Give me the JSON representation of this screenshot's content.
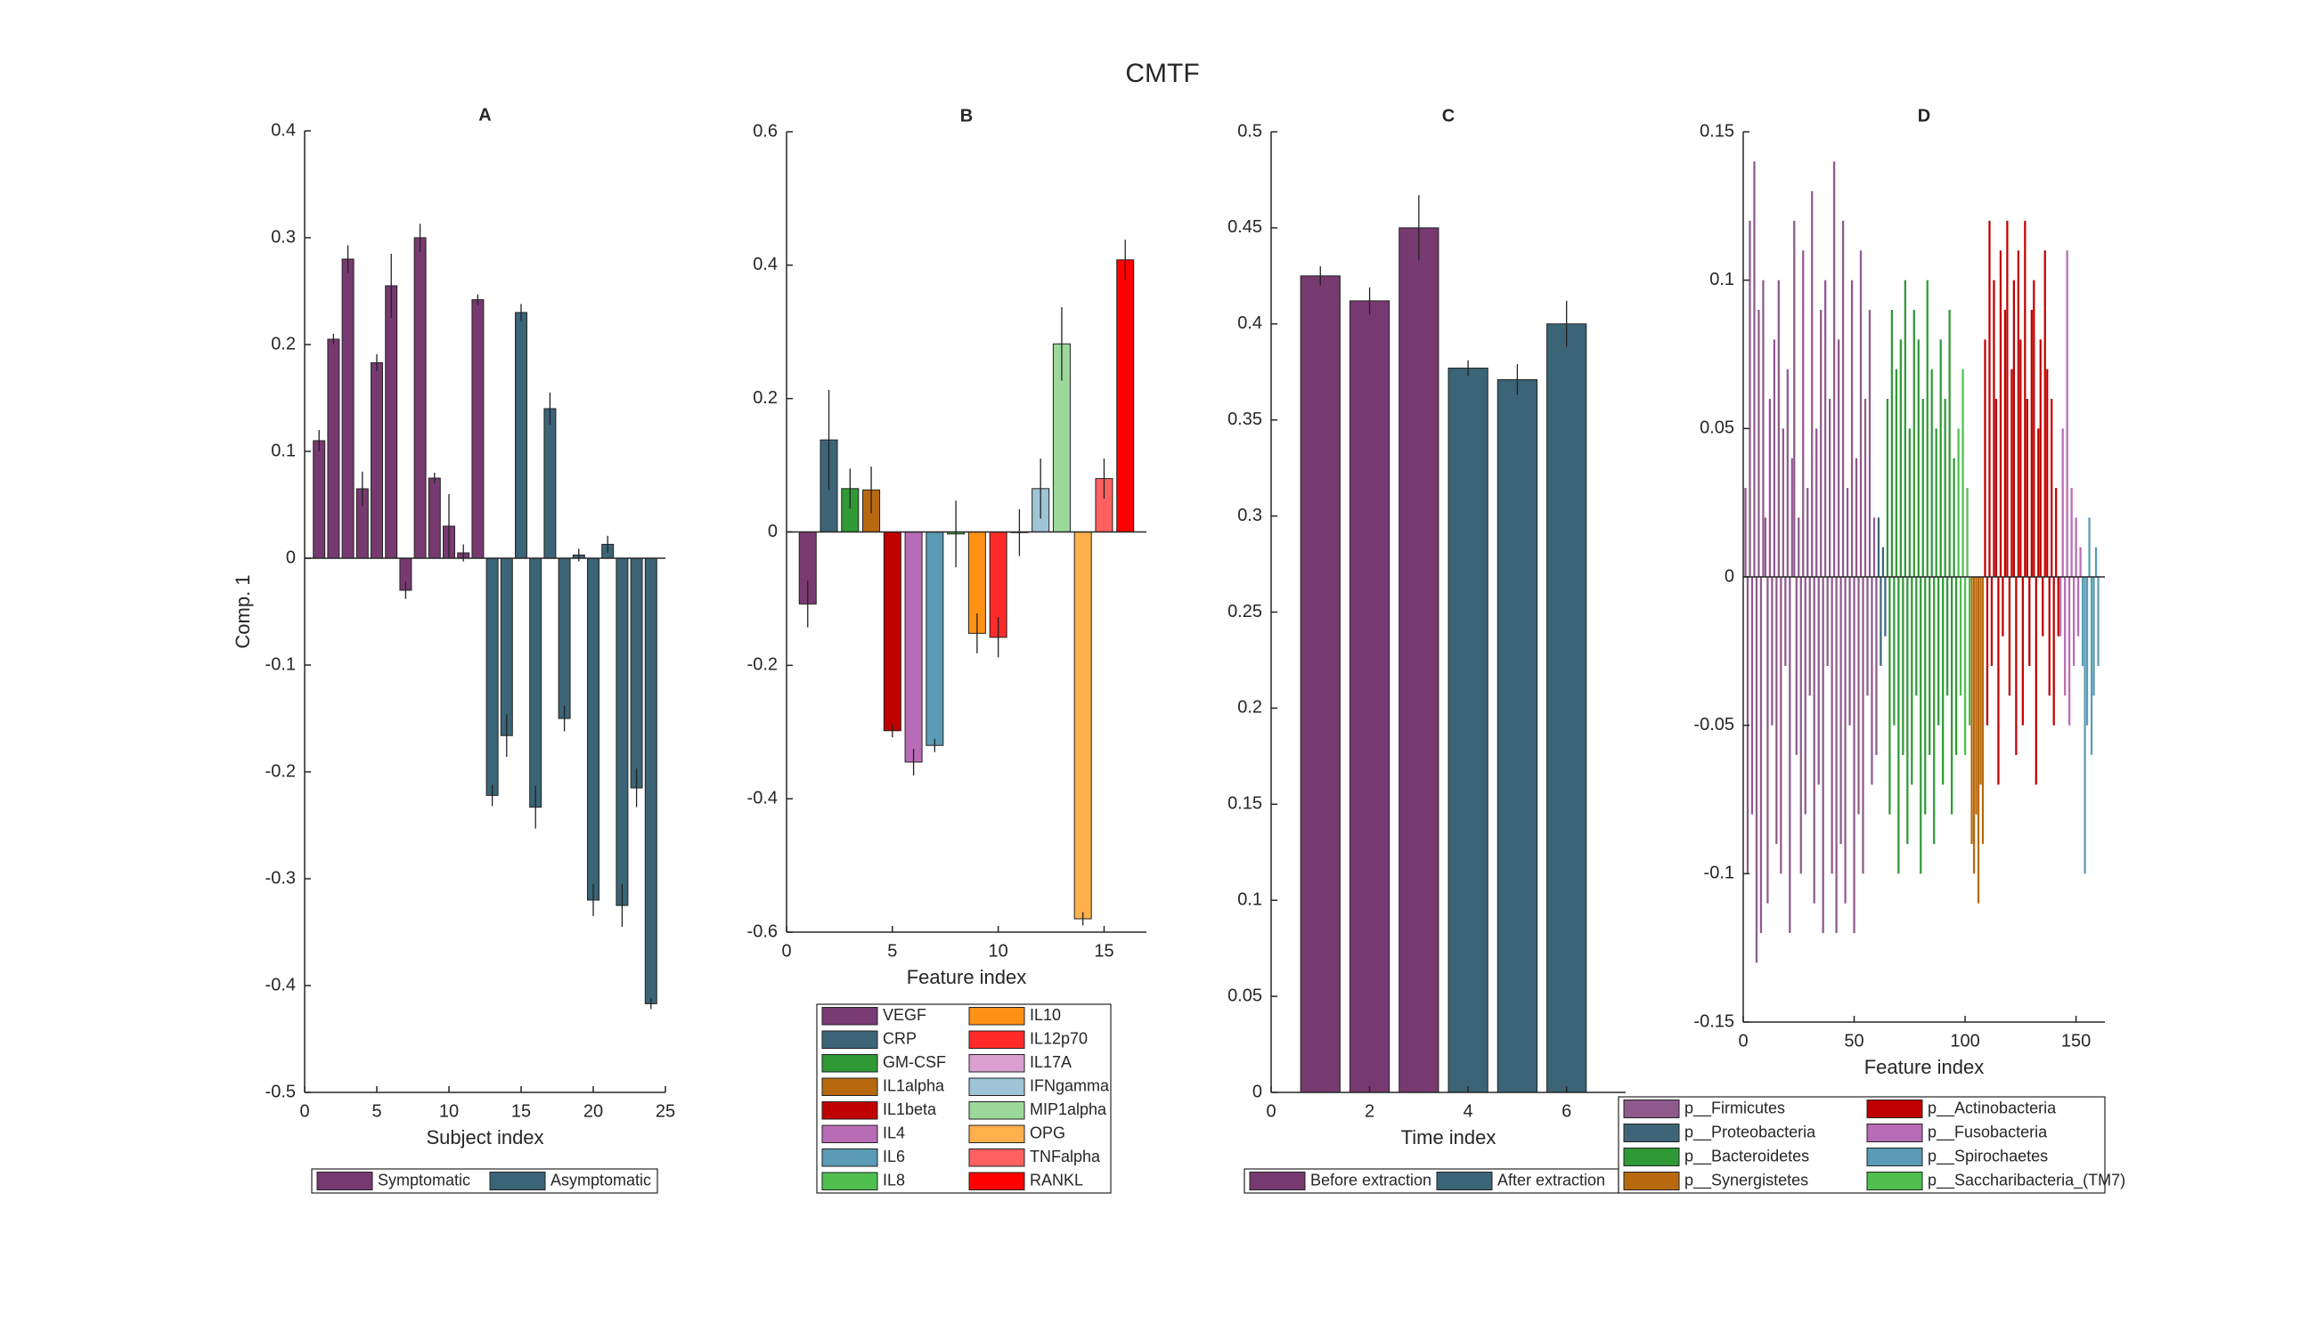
{
  "title": "CMTF",
  "chart_data": [
    {
      "type": "bar",
      "title": "A",
      "xlabel": "Subject index",
      "ylabel": "Comp. 1",
      "xlim": [
        0,
        25
      ],
      "ylim": [
        -0.5,
        0.4
      ],
      "xticks": [
        0,
        5,
        10,
        15,
        20,
        25
      ],
      "yticks": [
        -0.5,
        -0.4,
        -0.3,
        -0.2,
        -0.1,
        0,
        0.1,
        0.2,
        0.3,
        0.4
      ],
      "series": [
        {
          "name": "Symptomatic",
          "color": "#773a70",
          "x": [
            1,
            2,
            3,
            4,
            5,
            6,
            7,
            8,
            9,
            10,
            11,
            12
          ],
          "values": [
            0.11,
            0.205,
            0.28,
            0.065,
            0.183,
            0.255,
            -0.03,
            0.3,
            0.075,
            0.03,
            0.005,
            0.242
          ],
          "errors": [
            0.01,
            0.005,
            0.013,
            0.016,
            0.008,
            0.03,
            0.008,
            0.013,
            0.005,
            0.03,
            0.008,
            0.005
          ]
        },
        {
          "name": "Asymptomatic",
          "color": "#3b6476",
          "x": [
            13,
            14,
            15,
            16,
            17,
            18,
            19,
            20,
            21,
            22,
            23,
            24
          ],
          "values": [
            -0.222,
            -0.166,
            0.23,
            -0.233,
            0.14,
            -0.15,
            0.003,
            -0.32,
            0.013,
            -0.325,
            -0.215,
            -0.417
          ],
          "errors": [
            0.01,
            0.02,
            0.008,
            0.02,
            0.015,
            0.012,
            0.006,
            0.015,
            0.008,
            0.02,
            0.018,
            0.005
          ]
        }
      ]
    },
    {
      "type": "bar",
      "title": "B",
      "xlabel": "Feature index",
      "xlim": [
        0,
        17
      ],
      "ylim": [
        -0.6,
        0.6
      ],
      "xticks": [
        0,
        5,
        10,
        15
      ],
      "yticks": [
        -0.6,
        -0.4,
        -0.2,
        0,
        0.2,
        0.4,
        0.6
      ],
      "series": [
        {
          "name": "VEGF",
          "color": "#7a3b73",
          "x": [
            1
          ],
          "values": [
            -0.108
          ],
          "errors": [
            0.035
          ]
        },
        {
          "name": "CRP",
          "color": "#3e6577",
          "x": [
            2
          ],
          "values": [
            0.138
          ],
          "errors": [
            0.075
          ]
        },
        {
          "name": "GM-CSF",
          "color": "#2f9a35",
          "x": [
            3
          ],
          "values": [
            0.065
          ],
          "errors": [
            0.03
          ]
        },
        {
          "name": "IL1alpha",
          "color": "#b8690e",
          "x": [
            4
          ],
          "values": [
            0.063
          ],
          "errors": [
            0.035
          ]
        },
        {
          "name": "IL1beta",
          "color": "#c00000",
          "x": [
            5
          ],
          "values": [
            -0.298
          ],
          "errors": [
            0.01
          ]
        },
        {
          "name": "IL4",
          "color": "#b86cb6",
          "x": [
            6
          ],
          "values": [
            -0.345
          ],
          "errors": [
            0.02
          ]
        },
        {
          "name": "IL6",
          "color": "#5a9bb5",
          "x": [
            7
          ],
          "values": [
            -0.32
          ],
          "errors": [
            0.01
          ]
        },
        {
          "name": "IL8",
          "color": "#4fc04f",
          "x": [
            8
          ],
          "values": [
            -0.003
          ],
          "errors": [
            0.05
          ]
        },
        {
          "name": "IL10",
          "color": "#ff9214",
          "x": [
            9
          ],
          "values": [
            -0.152
          ],
          "errors": [
            0.03
          ]
        },
        {
          "name": "IL12p70",
          "color": "#ff2a2a",
          "x": [
            10
          ],
          "values": [
            -0.158
          ],
          "errors": [
            0.03
          ]
        },
        {
          "name": "IL17A",
          "color": "#d9a0d0",
          "x": [
            11
          ],
          "values": [
            -0.001
          ],
          "errors": [
            0.035
          ]
        },
        {
          "name": "IFNgamma",
          "color": "#9ec4d6",
          "x": [
            12
          ],
          "values": [
            0.065
          ],
          "errors": [
            0.045
          ]
        },
        {
          "name": "MIP1alpha",
          "color": "#9bd99b",
          "x": [
            13
          ],
          "values": [
            0.282
          ],
          "errors": [
            0.055
          ]
        },
        {
          "name": "OPG",
          "color": "#ffb04a",
          "x": [
            14
          ],
          "values": [
            -0.58
          ],
          "errors": [
            0.01
          ]
        },
        {
          "name": "TNFalpha",
          "color": "#ff6060",
          "x": [
            15
          ],
          "values": [
            0.08
          ],
          "errors": [
            0.03
          ]
        },
        {
          "name": "RANKL",
          "color": "#ff0000",
          "x": [
            16
          ],
          "values": [
            0.408
          ],
          "errors": [
            0.03
          ]
        }
      ]
    },
    {
      "type": "bar",
      "title": "C",
      "xlabel": "Time index",
      "xlim": [
        0,
        7.2
      ],
      "ylim": [
        0,
        0.5
      ],
      "xticks": [
        0,
        2,
        4,
        6
      ],
      "yticks": [
        0,
        0.05,
        0.1,
        0.15,
        0.2,
        0.25,
        0.3,
        0.35,
        0.4,
        0.45,
        0.5
      ],
      "series": [
        {
          "name": "Before extraction",
          "color": "#773a70",
          "x": [
            1,
            2,
            3
          ],
          "values": [
            0.425,
            0.412,
            0.45
          ],
          "errors": [
            0.005,
            0.007,
            0.017
          ]
        },
        {
          "name": "After extraction",
          "color": "#3b6476",
          "x": [
            4,
            5,
            6
          ],
          "values": [
            0.377,
            0.371,
            0.4
          ],
          "errors": [
            0.004,
            0.008,
            0.012
          ]
        }
      ]
    },
    {
      "type": "bar",
      "title": "D",
      "xlabel": "Feature index",
      "xlim": [
        0,
        163
      ],
      "ylim": [
        -0.15,
        0.15
      ],
      "xticks": [
        0,
        50,
        100,
        150
      ],
      "yticks": [
        -0.15,
        -0.1,
        -0.05,
        0,
        0.05,
        0.1,
        0.15
      ],
      "series": [
        {
          "name": "p__Firmicutes",
          "color": "#8e5a8c",
          "x": [
            1,
            2,
            3,
            4,
            5,
            6,
            7,
            8,
            9,
            10,
            11,
            12,
            13,
            14,
            15,
            16,
            17,
            18,
            19,
            20,
            21,
            22,
            23,
            24,
            25,
            26,
            27,
            28,
            29,
            30,
            31,
            32,
            33,
            34,
            35,
            36,
            37,
            38,
            39,
            40,
            41,
            42,
            43,
            44,
            45,
            46,
            47,
            48,
            49,
            50,
            51,
            52,
            53,
            54,
            55,
            56,
            57,
            58,
            59,
            60
          ],
          "values": [
            0.03,
            -0.1,
            0.12,
            -0.08,
            0.14,
            -0.13,
            0.09,
            -0.12,
            0.1,
            0.02,
            -0.11,
            0.06,
            -0.05,
            0.08,
            -0.09,
            0.1,
            -0.1,
            0.05,
            -0.03,
            0.07,
            -0.12,
            0.04,
            0.12,
            -0.06,
            0.02,
            -0.1,
            0.11,
            -0.08,
            0.03,
            -0.04,
            0.13,
            -0.11,
            0.05,
            -0.07,
            0.09,
            -0.12,
            0.1,
            -0.03,
            0.06,
            -0.1,
            0.14,
            -0.12,
            0.08,
            -0.09,
            0.12,
            -0.11,
            0.03,
            -0.05,
            0.1,
            -0.12,
            0.04,
            -0.08,
            0.11,
            -0.1,
            0.06,
            -0.04,
            0.09,
            -0.07,
            0.02,
            -0.06
          ]
        },
        {
          "name": "p__Proteobacteria",
          "color": "#3e6577",
          "x": [
            61,
            62,
            63,
            64
          ],
          "values": [
            0.02,
            -0.03,
            0.01,
            -0.02
          ]
        },
        {
          "name": "p__Bacteroidetes",
          "color": "#2f9a35",
          "x": [
            65,
            66,
            67,
            68,
            69,
            70,
            71,
            72,
            73,
            74,
            75,
            76,
            77,
            78,
            79,
            80,
            81,
            82,
            83,
            84,
            85,
            86,
            87,
            88,
            89,
            90,
            91,
            92,
            93,
            94,
            95,
            96
          ],
          "values": [
            0.06,
            -0.08,
            0.09,
            -0.05,
            0.07,
            -0.1,
            0.08,
            -0.06,
            0.1,
            -0.09,
            0.05,
            -0.07,
            0.09,
            -0.04,
            0.08,
            -0.1,
            0.06,
            -0.08,
            0.1,
            -0.06,
            0.07,
            -0.09,
            0.05,
            -0.05,
            0.08,
            -0.07,
            0.06,
            -0.04,
            0.09,
            -0.08,
            0.04,
            -0.06
          ]
        },
        {
          "name": "p__Synergistetes",
          "color": "#b8690e",
          "x": [
            103,
            104,
            105,
            106,
            107,
            108
          ],
          "values": [
            -0.09,
            -0.1,
            -0.08,
            -0.11,
            -0.07,
            -0.09
          ]
        },
        {
          "name": "p__Actinobacteria",
          "color": "#c00000",
          "x": [
            109,
            110,
            111,
            112,
            113,
            114,
            115,
            116,
            117,
            118,
            119,
            120,
            121,
            122,
            123,
            124,
            125,
            126,
            127,
            128,
            129,
            130,
            131,
            132,
            133,
            134,
            135,
            136,
            137,
            138,
            139,
            140,
            141,
            142
          ],
          "values": [
            0.08,
            -0.05,
            0.12,
            -0.03,
            0.1,
            0.06,
            -0.07,
            0.11,
            -0.02,
            0.09,
            0.12,
            -0.04,
            0.07,
            0.1,
            -0.06,
            0.11,
            0.08,
            -0.05,
            0.12,
            0.06,
            -0.03,
            0.09,
            0.1,
            -0.07,
            0.05,
            0.08,
            -0.02,
            0.11,
            0.07,
            -0.04,
            0.06,
            -0.05,
            0.03,
            -0.02
          ]
        },
        {
          "name": "p__Fusobacteria",
          "color": "#b86cb6",
          "x": [
            143,
            144,
            145,
            146,
            147,
            148,
            149,
            150,
            151,
            152
          ],
          "values": [
            -0.02,
            0.05,
            -0.04,
            0.11,
            -0.05,
            0.03,
            -0.03,
            0.02,
            -0.02,
            0.01
          ]
        },
        {
          "name": "p__Spirochaetes",
          "color": "#5a9bb5",
          "x": [
            153,
            154,
            155,
            156,
            157,
            158,
            159,
            160
          ],
          "values": [
            -0.03,
            -0.1,
            -0.05,
            0.02,
            -0.06,
            -0.04,
            0.01,
            -0.03
          ]
        },
        {
          "name": "p__Saccharibacteria_(TM7)",
          "color": "#4fc04f",
          "x": [
            97,
            98,
            99,
            100,
            101,
            102
          ],
          "values": [
            0.05,
            -0.04,
            0.07,
            -0.06,
            0.03,
            -0.05
          ]
        }
      ]
    }
  ]
}
